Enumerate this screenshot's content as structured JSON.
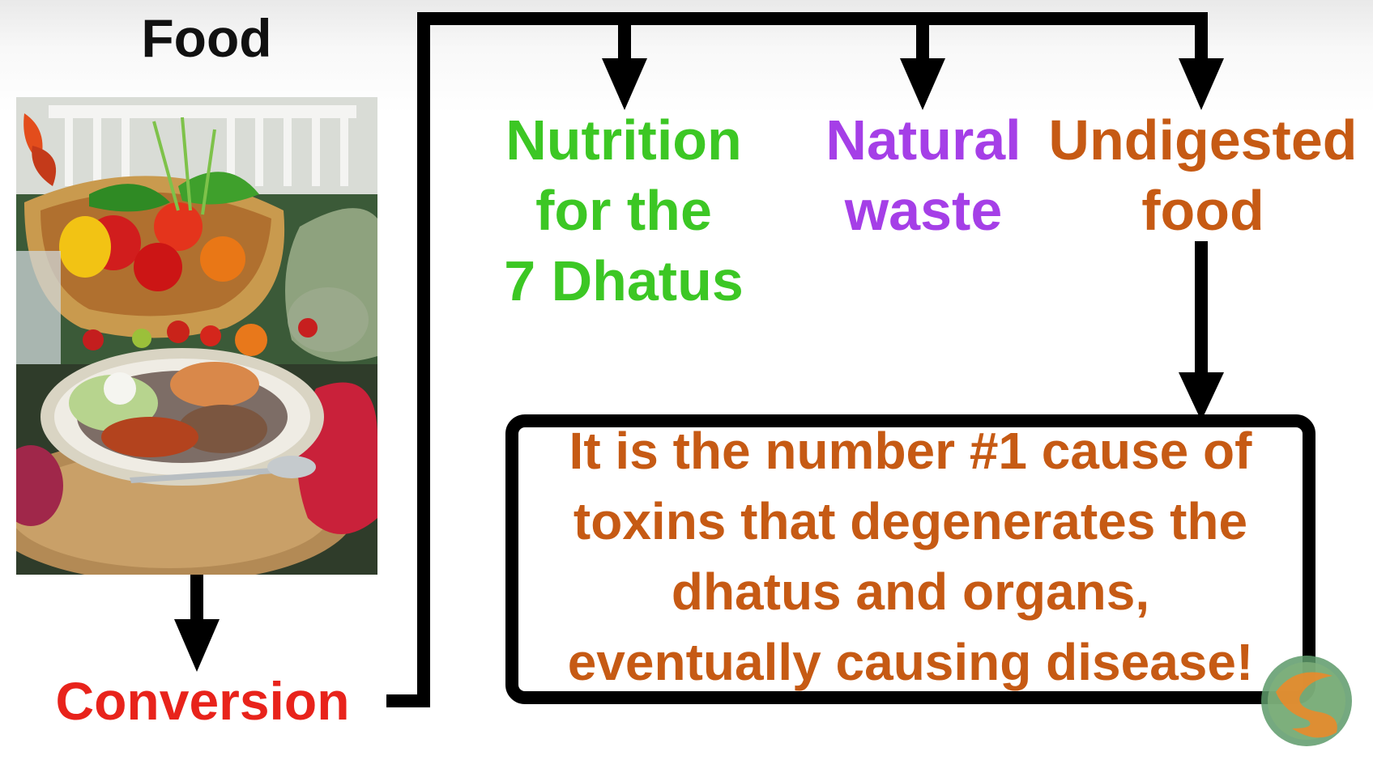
{
  "title": "Food",
  "conversion_label": "Conversion",
  "outcomes": {
    "nutrition": [
      "Nutrition",
      "for the",
      "7 Dhatus"
    ],
    "waste": [
      "Natural",
      "waste"
    ],
    "undigested": [
      "Undigested",
      "food"
    ]
  },
  "message_box": {
    "lines": [
      "It is the number #1 cause of",
      "toxins that degenerates the",
      "dhatus and organs,",
      "eventually causing disease!"
    ]
  },
  "colors": {
    "nutrition": "#3cc724",
    "waste": "#a53fe7",
    "undigested": "#c65a14",
    "conversion": "#e8231b",
    "title": "#111111"
  },
  "icons": {
    "food_photo": "food-photo-icon",
    "logo": "swirl-logo-icon"
  }
}
